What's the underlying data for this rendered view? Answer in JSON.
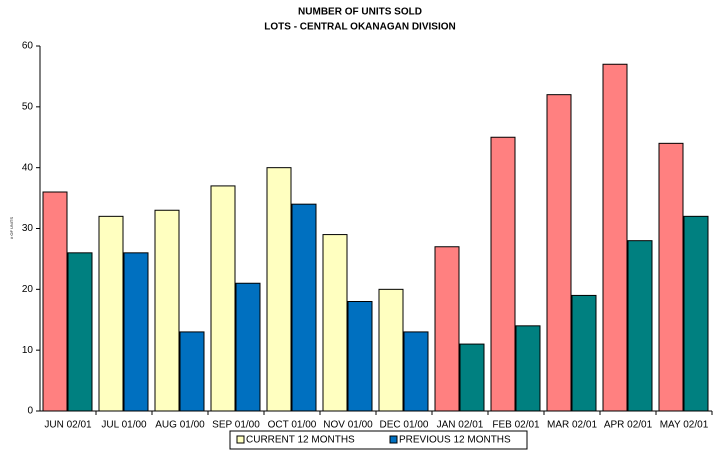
{
  "chart_data": {
    "type": "bar",
    "title": "NUMBER OF UNITS SOLD",
    "subtitle": "LOTS - CENTRAL OKANAGAN DIVISION",
    "y_label": "# OF UNITS",
    "categories": [
      "JUN 02/01",
      "JUL 01/00",
      "AUG 01/00",
      "SEP 01/00",
      "OCT 01/00",
      "NOV 01/00",
      "DEC 01/00",
      "JAN 02/01",
      "FEB 02/01",
      "MAR 02/01",
      "APR 02/01",
      "MAY 02/01"
    ],
    "series": [
      {
        "name": "CURRENT 12 MONTHS",
        "color": "#ffffc0",
        "colors": [
          "#ff8080",
          "#ffffc0",
          "#ffffc0",
          "#ffffc0",
          "#ffffc0",
          "#ffffc0",
          "#ffffc0",
          "#ff8080",
          "#ff8080",
          "#ff8080",
          "#ff8080",
          "#ff8080"
        ],
        "values": [
          36,
          32,
          33,
          37,
          40,
          29,
          20,
          27,
          45,
          52,
          57,
          44
        ]
      },
      {
        "name": "PREVIOUS 12 MONTHS",
        "color": "#0070c0",
        "colors": [
          "#008080",
          "#0070c0",
          "#0070c0",
          "#0070c0",
          "#0070c0",
          "#0070c0",
          "#0070c0",
          "#008080",
          "#008080",
          "#008080",
          "#008080",
          "#008080"
        ],
        "values": [
          26,
          26,
          13,
          21,
          34,
          18,
          13,
          11,
          14,
          19,
          28,
          32
        ]
      }
    ],
    "ylim": [
      0,
      60
    ],
    "yticks": [
      0,
      10,
      20,
      30,
      40,
      50,
      60
    ]
  }
}
